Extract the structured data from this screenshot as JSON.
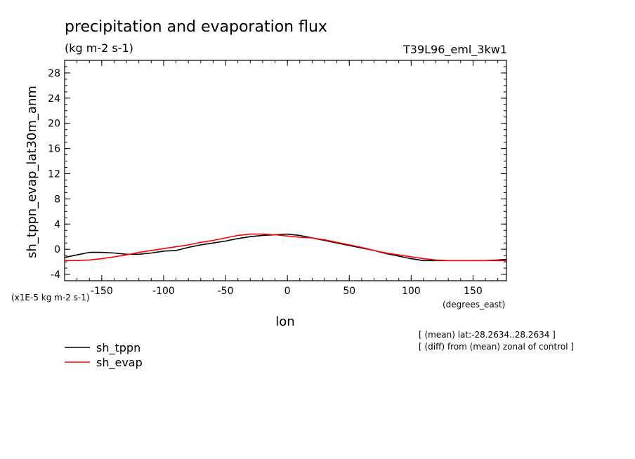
{
  "chart_data": {
    "type": "line",
    "title": "precipitation and evaporation flux",
    "units": "(kg m-2 s-1)",
    "run_label": "T39L96_eml_3kw1",
    "ylabel": "sh_tppn_evap_lat30m_anm",
    "yscale_label": "(x1E-5 kg m-2 s-1)",
    "xlabel": "lon",
    "xunits": "(degrees_east)",
    "notes": [
      "[ (mean) lat:-28.2634..28.2634 ]",
      "[ (diff) from (mean) zonal of control ]"
    ],
    "xlim": [
      -180,
      177
    ],
    "ylim": [
      -5,
      30
    ],
    "xticks": [
      -150,
      -100,
      -50,
      0,
      50,
      100,
      150
    ],
    "xtick_labels": [
      "-150",
      "-100",
      "-50",
      "0",
      "50",
      "100",
      "150"
    ],
    "yticks": [
      -4,
      0,
      4,
      8,
      12,
      16,
      20,
      24,
      28
    ],
    "ytick_labels": [
      "-4",
      "0",
      "4",
      "8",
      "12",
      "16",
      "20",
      "24",
      "28"
    ],
    "grid": false,
    "legend_position": "bottom-left",
    "series": [
      {
        "name": "sh_tppn",
        "color": "#000000",
        "x": [
          -180,
          -170,
          -160,
          -150,
          -140,
          -130,
          -120,
          -110,
          -100,
          -90,
          -80,
          -70,
          -60,
          -50,
          -40,
          -30,
          -20,
          -10,
          0,
          10,
          20,
          30,
          40,
          50,
          60,
          70,
          80,
          90,
          100,
          110,
          120,
          130,
          140,
          150,
          160,
          170,
          177
        ],
        "y": [
          -1.3,
          -0.9,
          -0.5,
          -0.5,
          -0.6,
          -0.8,
          -0.8,
          -0.6,
          -0.3,
          -0.2,
          0.3,
          0.7,
          1.0,
          1.3,
          1.7,
          2.0,
          2.2,
          2.3,
          2.4,
          2.2,
          1.8,
          1.4,
          1.0,
          0.6,
          0.2,
          -0.2,
          -0.7,
          -1.1,
          -1.5,
          -1.8,
          -1.8,
          -1.8,
          -1.8,
          -1.8,
          -1.8,
          -1.7,
          -1.6
        ]
      },
      {
        "name": "sh_evap",
        "color": "#ff0000",
        "x": [
          -180,
          -170,
          -160,
          -150,
          -140,
          -130,
          -120,
          -110,
          -100,
          -90,
          -80,
          -70,
          -60,
          -50,
          -40,
          -30,
          -20,
          -10,
          0,
          10,
          20,
          30,
          40,
          50,
          60,
          70,
          80,
          90,
          100,
          110,
          120,
          130,
          140,
          150,
          160,
          170,
          177
        ],
        "y": [
          -1.8,
          -1.8,
          -1.7,
          -1.5,
          -1.2,
          -0.9,
          -0.5,
          -0.2,
          0.1,
          0.4,
          0.7,
          1.1,
          1.4,
          1.8,
          2.2,
          2.4,
          2.4,
          2.3,
          2.1,
          1.9,
          1.8,
          1.5,
          1.1,
          0.7,
          0.3,
          -0.2,
          -0.6,
          -0.9,
          -1.2,
          -1.5,
          -1.7,
          -1.8,
          -1.8,
          -1.8,
          -1.8,
          -1.8,
          -1.8
        ]
      }
    ]
  }
}
